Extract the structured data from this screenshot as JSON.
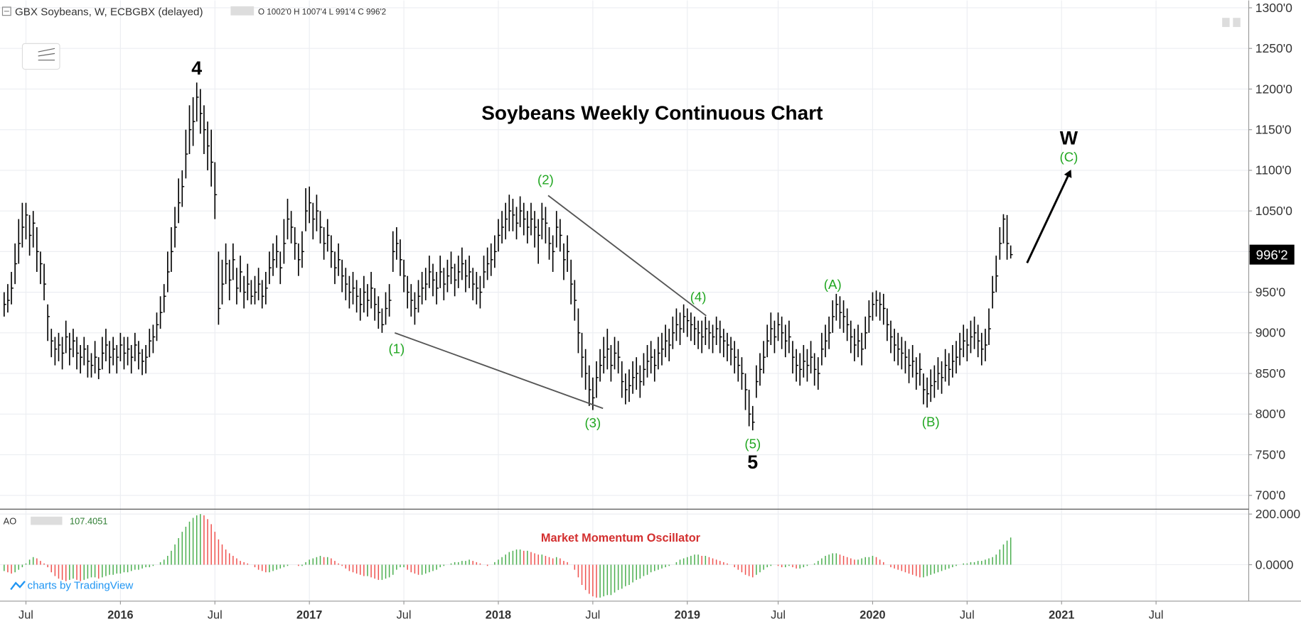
{
  "chart_data": {
    "type": "ohlc",
    "header": "GBX Soybeans, W, ECBGBX (delayed)",
    "ohlc_label": "O 1002'0 H 1007'4 L 991'4 C 996'2",
    "title": "Soybeans Weekly Continuous Chart",
    "color": "#000000",
    "high": [
      950,
      960,
      975,
      1010,
      1040,
      1060,
      1060,
      1045,
      1050,
      1030,
      1000,
      985,
      935,
      905,
      895,
      900,
      895,
      915,
      900,
      905,
      895,
      885,
      895,
      885,
      875,
      890,
      870,
      895,
      905,
      890,
      895,
      885,
      900,
      895,
      895,
      885,
      900,
      890,
      880,
      885,
      905,
      910,
      925,
      945,
      960,
      1000,
      1030,
      1055,
      1090,
      1100,
      1150,
      1180,
      1190,
      1208,
      1200,
      1180,
      1160,
      1150,
      1110,
      1000,
      990,
      1010,
      990,
      1010,
      980,
      995,
      970,
      985,
      965,
      970,
      980,
      965,
      975,
      1000,
      1010,
      1020,
      1000,
      1040,
      1065,
      1050,
      1030,
      1010,
      1025,
      1078,
      1080,
      1060,
      1070,
      1050,
      1030,
      1040,
      1020,
      1000,
      1010,
      990,
      980,
      970,
      975,
      965,
      955,
      970,
      960,
      975,
      955,
      945,
      930,
      950,
      960,
      1025,
      1030,
      1015,
      990,
      970,
      960,
      950,
      965,
      975,
      980,
      995,
      985,
      975,
      995,
      980,
      990,
      1000,
      985,
      995,
      1005,
      990,
      995,
      980,
      975,
      970,
      995,
      1005,
      1010,
      1020,
      1040,
      1050,
      1060,
      1070,
      1065,
      1055,
      1068,
      1060,
      1050,
      1060,
      1050,
      1040,
      1060,
      1055,
      1030,
      1020,
      1050,
      1040,
      1010,
      1020,
      990,
      965,
      930,
      900,
      880,
      860,
      845,
      865,
      880,
      895,
      905,
      885,
      895,
      890,
      865,
      850,
      855,
      865,
      870,
      860,
      875,
      885,
      890,
      880,
      895,
      900,
      910,
      905,
      920,
      930,
      925,
      935,
      930,
      925,
      920,
      915,
      915,
      920,
      915,
      910,
      920,
      915,
      905,
      900,
      895,
      890,
      880,
      870,
      850,
      830,
      810,
      860,
      875,
      890,
      910,
      925,
      915,
      925,
      920,
      910,
      915,
      890,
      880,
      875,
      885,
      880,
      890,
      875,
      870,
      900,
      910,
      920,
      940,
      948,
      945,
      940,
      930,
      915,
      905,
      910,
      900,
      920,
      940,
      950,
      952,
      950,
      948,
      930,
      915,
      905,
      900,
      895,
      890,
      880,
      885,
      870,
      875,
      850,
      845,
      855,
      860,
      870,
      865,
      880,
      875,
      885,
      890,
      900,
      910,
      905,
      915,
      920,
      910,
      900,
      905,
      930,
      970,
      995,
      1030,
      1046,
      1045,
      1007.5
    ],
    "low": [
      920,
      925,
      935,
      960,
      985,
      1005,
      1015,
      995,
      1005,
      975,
      960,
      940,
      890,
      870,
      860,
      865,
      855,
      875,
      860,
      870,
      855,
      850,
      860,
      845,
      845,
      850,
      843,
      855,
      865,
      850,
      860,
      850,
      865,
      855,
      860,
      850,
      865,
      855,
      848,
      850,
      870,
      875,
      890,
      905,
      925,
      950,
      975,
      1005,
      1035,
      1055,
      1090,
      1120,
      1130,
      1160,
      1145,
      1120,
      1100,
      1080,
      1040,
      910,
      935,
      960,
      940,
      965,
      935,
      950,
      930,
      940,
      935,
      935,
      940,
      930,
      935,
      960,
      970,
      980,
      960,
      985,
      1015,
      1010,
      990,
      970,
      980,
      1025,
      1035,
      1015,
      1025,
      1010,
      990,
      1000,
      980,
      960,
      970,
      950,
      940,
      930,
      935,
      925,
      915,
      925,
      920,
      930,
      915,
      905,
      900,
      910,
      920,
      975,
      990,
      970,
      950,
      930,
      920,
      910,
      925,
      935,
      940,
      955,
      945,
      935,
      955,
      940,
      950,
      960,
      945,
      955,
      965,
      950,
      955,
      940,
      935,
      930,
      955,
      965,
      970,
      980,
      1000,
      1010,
      1015,
      1025,
      1025,
      1015,
      1030,
      1020,
      1010,
      1020,
      1005,
      985,
      1015,
      1010,
      990,
      975,
      1005,
      1000,
      965,
      975,
      935,
      915,
      875,
      845,
      830,
      810,
      805,
      820,
      840,
      850,
      855,
      840,
      855,
      850,
      820,
      812,
      815,
      825,
      830,
      820,
      835,
      845,
      850,
      840,
      855,
      860,
      870,
      865,
      880,
      890,
      885,
      900,
      895,
      890,
      885,
      880,
      875,
      885,
      880,
      875,
      885,
      875,
      870,
      865,
      860,
      850,
      840,
      830,
      805,
      785,
      780,
      820,
      835,
      850,
      870,
      885,
      875,
      890,
      880,
      870,
      875,
      850,
      840,
      835,
      845,
      840,
      850,
      835,
      830,
      860,
      870,
      880,
      900,
      915,
      905,
      900,
      890,
      875,
      865,
      870,
      860,
      880,
      900,
      915,
      920,
      915,
      910,
      890,
      875,
      865,
      860,
      855,
      850,
      838,
      845,
      830,
      835,
      812,
      808,
      815,
      820,
      830,
      825,
      840,
      835,
      845,
      850,
      860,
      870,
      865,
      875,
      880,
      870,
      860,
      865,
      885,
      930,
      950,
      990,
      1010,
      990,
      991.5
    ],
    "close": [
      935,
      940,
      955,
      985,
      1010,
      1030,
      1045,
      1020,
      1035,
      1000,
      985,
      960,
      920,
      890,
      880,
      885,
      875,
      895,
      880,
      890,
      875,
      870,
      880,
      865,
      860,
      870,
      855,
      875,
      885,
      870,
      880,
      870,
      885,
      875,
      880,
      870,
      885,
      875,
      865,
      870,
      890,
      895,
      910,
      925,
      945,
      975,
      1000,
      1030,
      1060,
      1080,
      1120,
      1150,
      1160,
      1190,
      1170,
      1150,
      1130,
      1110,
      1070,
      930,
      960,
      985,
      965,
      990,
      955,
      975,
      950,
      960,
      945,
      950,
      960,
      945,
      955,
      980,
      990,
      1000,
      980,
      1010,
      1040,
      1030,
      1010,
      990,
      1000,
      1050,
      1060,
      1040,
      1050,
      1030,
      1010,
      1020,
      1000,
      980,
      990,
      970,
      960,
      950,
      955,
      945,
      935,
      950,
      940,
      955,
      935,
      925,
      910,
      930,
      940,
      1000,
      1010,
      990,
      970,
      950,
      940,
      930,
      945,
      955,
      960,
      975,
      965,
      955,
      975,
      960,
      970,
      980,
      965,
      975,
      985,
      970,
      975,
      960,
      955,
      950,
      975,
      985,
      990,
      1000,
      1020,
      1030,
      1040,
      1050,
      1045,
      1035,
      1050,
      1040,
      1030,
      1040,
      1030,
      1020,
      1040,
      1035,
      1010,
      1000,
      1030,
      1020,
      990,
      1000,
      960,
      940,
      900,
      870,
      850,
      830,
      820,
      845,
      860,
      870,
      880,
      860,
      875,
      870,
      840,
      830,
      835,
      845,
      850,
      840,
      855,
      865,
      870,
      860,
      875,
      880,
      890,
      885,
      900,
      910,
      905,
      920,
      915,
      910,
      905,
      900,
      895,
      905,
      900,
      895,
      905,
      895,
      890,
      885,
      880,
      870,
      860,
      850,
      830,
      800,
      790,
      840,
      855,
      870,
      890,
      905,
      895,
      910,
      900,
      890,
      895,
      870,
      860,
      855,
      865,
      860,
      870,
      855,
      850,
      880,
      890,
      900,
      920,
      935,
      925,
      920,
      910,
      895,
      885,
      890,
      880,
      900,
      920,
      935,
      940,
      935,
      930,
      910,
      895,
      885,
      880,
      875,
      870,
      860,
      865,
      850,
      855,
      830,
      825,
      835,
      840,
      850,
      845,
      860,
      855,
      865,
      870,
      880,
      890,
      885,
      895,
      900,
      890,
      880,
      885,
      905,
      950,
      970,
      1010,
      1040,
      1010,
      996.25
    ],
    "last_label": "996'2",
    "xlim": [
      -1.14,
      342.5
    ],
    "xticks": [
      {
        "value": 6,
        "label": "Jul"
      },
      {
        "value": 32,
        "label": "2016"
      },
      {
        "value": 58,
        "label": "Jul"
      },
      {
        "value": 84,
        "label": "2017"
      },
      {
        "value": 110,
        "label": "Jul"
      },
      {
        "value": 136,
        "label": "2018"
      },
      {
        "value": 162,
        "label": "Jul"
      },
      {
        "value": 188,
        "label": "2019"
      },
      {
        "value": 213,
        "label": "Jul"
      },
      {
        "value": 239,
        "label": "2020"
      },
      {
        "value": 265,
        "label": "Jul"
      },
      {
        "value": 291,
        "label": "2021"
      },
      {
        "value": 317,
        "label": "Jul"
      }
    ],
    "ylim": [
      684,
      1309
    ],
    "yticks": [
      {
        "value": 700,
        "label": "700'0"
      },
      {
        "value": 750,
        "label": "750'0"
      },
      {
        "value": 800,
        "label": "800'0"
      },
      {
        "value": 850,
        "label": "850'0"
      },
      {
        "value": 900,
        "label": "900'0"
      },
      {
        "value": 950,
        "label": "950'0"
      },
      {
        "value": 1000,
        "label": "1000'0"
      },
      {
        "value": 1050,
        "label": "1050'0"
      },
      {
        "value": 1100,
        "label": "1100'0"
      },
      {
        "value": 1150,
        "label": "1150'0"
      },
      {
        "value": 1200,
        "label": "1200'0"
      },
      {
        "value": 1250,
        "label": "1250'0"
      },
      {
        "value": 1300,
        "label": "1300'0"
      }
    ],
    "grid": true,
    "annotations": [
      {
        "text": "4",
        "x": 53,
        "y": 1226,
        "color": "#000000",
        "bold": true
      },
      {
        "text": "(2)",
        "x": 149,
        "y": 1089,
        "color": "#22a722",
        "bold": false
      },
      {
        "text": "(1)",
        "x": 108,
        "y": 881,
        "color": "#22a722",
        "bold": false
      },
      {
        "text": "(3)",
        "x": 162,
        "y": 790,
        "color": "#22a722",
        "bold": false
      },
      {
        "text": "(4)",
        "x": 191,
        "y": 945,
        "color": "#22a722",
        "bold": false
      },
      {
        "text": "(5)",
        "x": 206,
        "y": 764,
        "color": "#22a722",
        "bold": false
      },
      {
        "text": "5",
        "x": 206,
        "y": 741,
        "color": "#000000",
        "bold": true
      },
      {
        "text": "(A)",
        "x": 228,
        "y": 960,
        "color": "#22a722",
        "bold": false
      },
      {
        "text": "(B)",
        "x": 255,
        "y": 791,
        "color": "#22a722",
        "bold": false
      },
      {
        "text": "W",
        "x": 293,
        "y": 1140,
        "color": "#000000",
        "bold": true
      },
      {
        "text": "(C)",
        "x": 293,
        "y": 1117,
        "color": "#22a722",
        "bold": false
      }
    ],
    "lines": [
      {
        "x": [
          149.7,
          193.2
        ],
        "y": [
          1069,
          921
        ],
        "color": "#555555",
        "arrow": false
      },
      {
        "x": [
          107.5,
          164.8
        ],
        "y": [
          900,
          807
        ],
        "color": "#555555",
        "arrow": false
      },
      {
        "x": [
          281.5,
          293.4
        ],
        "y": [
          986,
          1099
        ],
        "color": "#000000",
        "arrow": true
      }
    ],
    "oscillator": {
      "name": "AO",
      "title": "Market Momentum Oscillator",
      "up_color": "#4caf50",
      "down_color": "#ef5350",
      "ylim": [
        -144,
        216
      ],
      "yticks": [
        {
          "value": 0,
          "label": "0.0000"
        },
        {
          "value": 200,
          "label": "200.000"
        }
      ],
      "values": [
        -25,
        -30,
        -35,
        -30,
        -20,
        -10,
        5,
        20,
        30,
        25,
        15,
        5,
        -10,
        -30,
        -45,
        -55,
        -60,
        -65,
        -60,
        -55,
        -60,
        -65,
        -60,
        -55,
        -50,
        -50,
        -55,
        -50,
        -45,
        -40,
        -40,
        -35,
        -35,
        -30,
        -30,
        -25,
        -20,
        -20,
        -15,
        -10,
        -10,
        -5,
        0,
        10,
        20,
        35,
        55,
        80,
        105,
        130,
        150,
        170,
        185,
        195,
        200,
        195,
        180,
        160,
        130,
        100,
        80,
        60,
        45,
        35,
        25,
        15,
        10,
        5,
        0,
        -10,
        -20,
        -25,
        -30,
        -30,
        -25,
        -20,
        -15,
        -10,
        -5,
        0,
        0,
        -5,
        -5,
        10,
        20,
        25,
        30,
        35,
        30,
        30,
        25,
        15,
        5,
        -5,
        -15,
        -25,
        -30,
        -35,
        -40,
        -45,
        -45,
        -50,
        -55,
        -60,
        -60,
        -55,
        -50,
        -40,
        -20,
        -10,
        -10,
        -20,
        -30,
        -35,
        -40,
        -40,
        -35,
        -30,
        -25,
        -20,
        -10,
        -5,
        0,
        5,
        10,
        10,
        15,
        15,
        20,
        15,
        10,
        5,
        0,
        -5,
        0,
        10,
        20,
        30,
        40,
        50,
        55,
        60,
        60,
        55,
        55,
        50,
        45,
        40,
        40,
        35,
        30,
        25,
        30,
        25,
        15,
        10,
        0,
        -20,
        -50,
        -80,
        -100,
        -115,
        -125,
        -130,
        -130,
        -125,
        -120,
        -120,
        -110,
        -100,
        -95,
        -85,
        -80,
        -70,
        -60,
        -55,
        -45,
        -40,
        -30,
        -25,
        -20,
        -15,
        -10,
        -5,
        0,
        10,
        20,
        25,
        30,
        35,
        40,
        40,
        35,
        35,
        30,
        25,
        20,
        15,
        10,
        5,
        0,
        -10,
        -20,
        -30,
        -40,
        -45,
        -50,
        -40,
        -30,
        -20,
        -10,
        -5,
        0,
        -5,
        -10,
        -10,
        -5,
        -10,
        -15,
        -15,
        -10,
        -5,
        0,
        5,
        15,
        25,
        35,
        40,
        45,
        45,
        40,
        35,
        30,
        25,
        20,
        20,
        25,
        30,
        30,
        35,
        30,
        20,
        10,
        0,
        -10,
        -15,
        -20,
        -25,
        -30,
        -35,
        -40,
        -45,
        -50,
        -50,
        -45,
        -40,
        -35,
        -30,
        -25,
        -20,
        -15,
        -10,
        -5,
        0,
        5,
        5,
        10,
        10,
        15,
        15,
        20,
        25,
        30,
        40,
        60,
        80,
        95,
        107.4051
      ]
    },
    "credit": "charts by TradingView"
  }
}
